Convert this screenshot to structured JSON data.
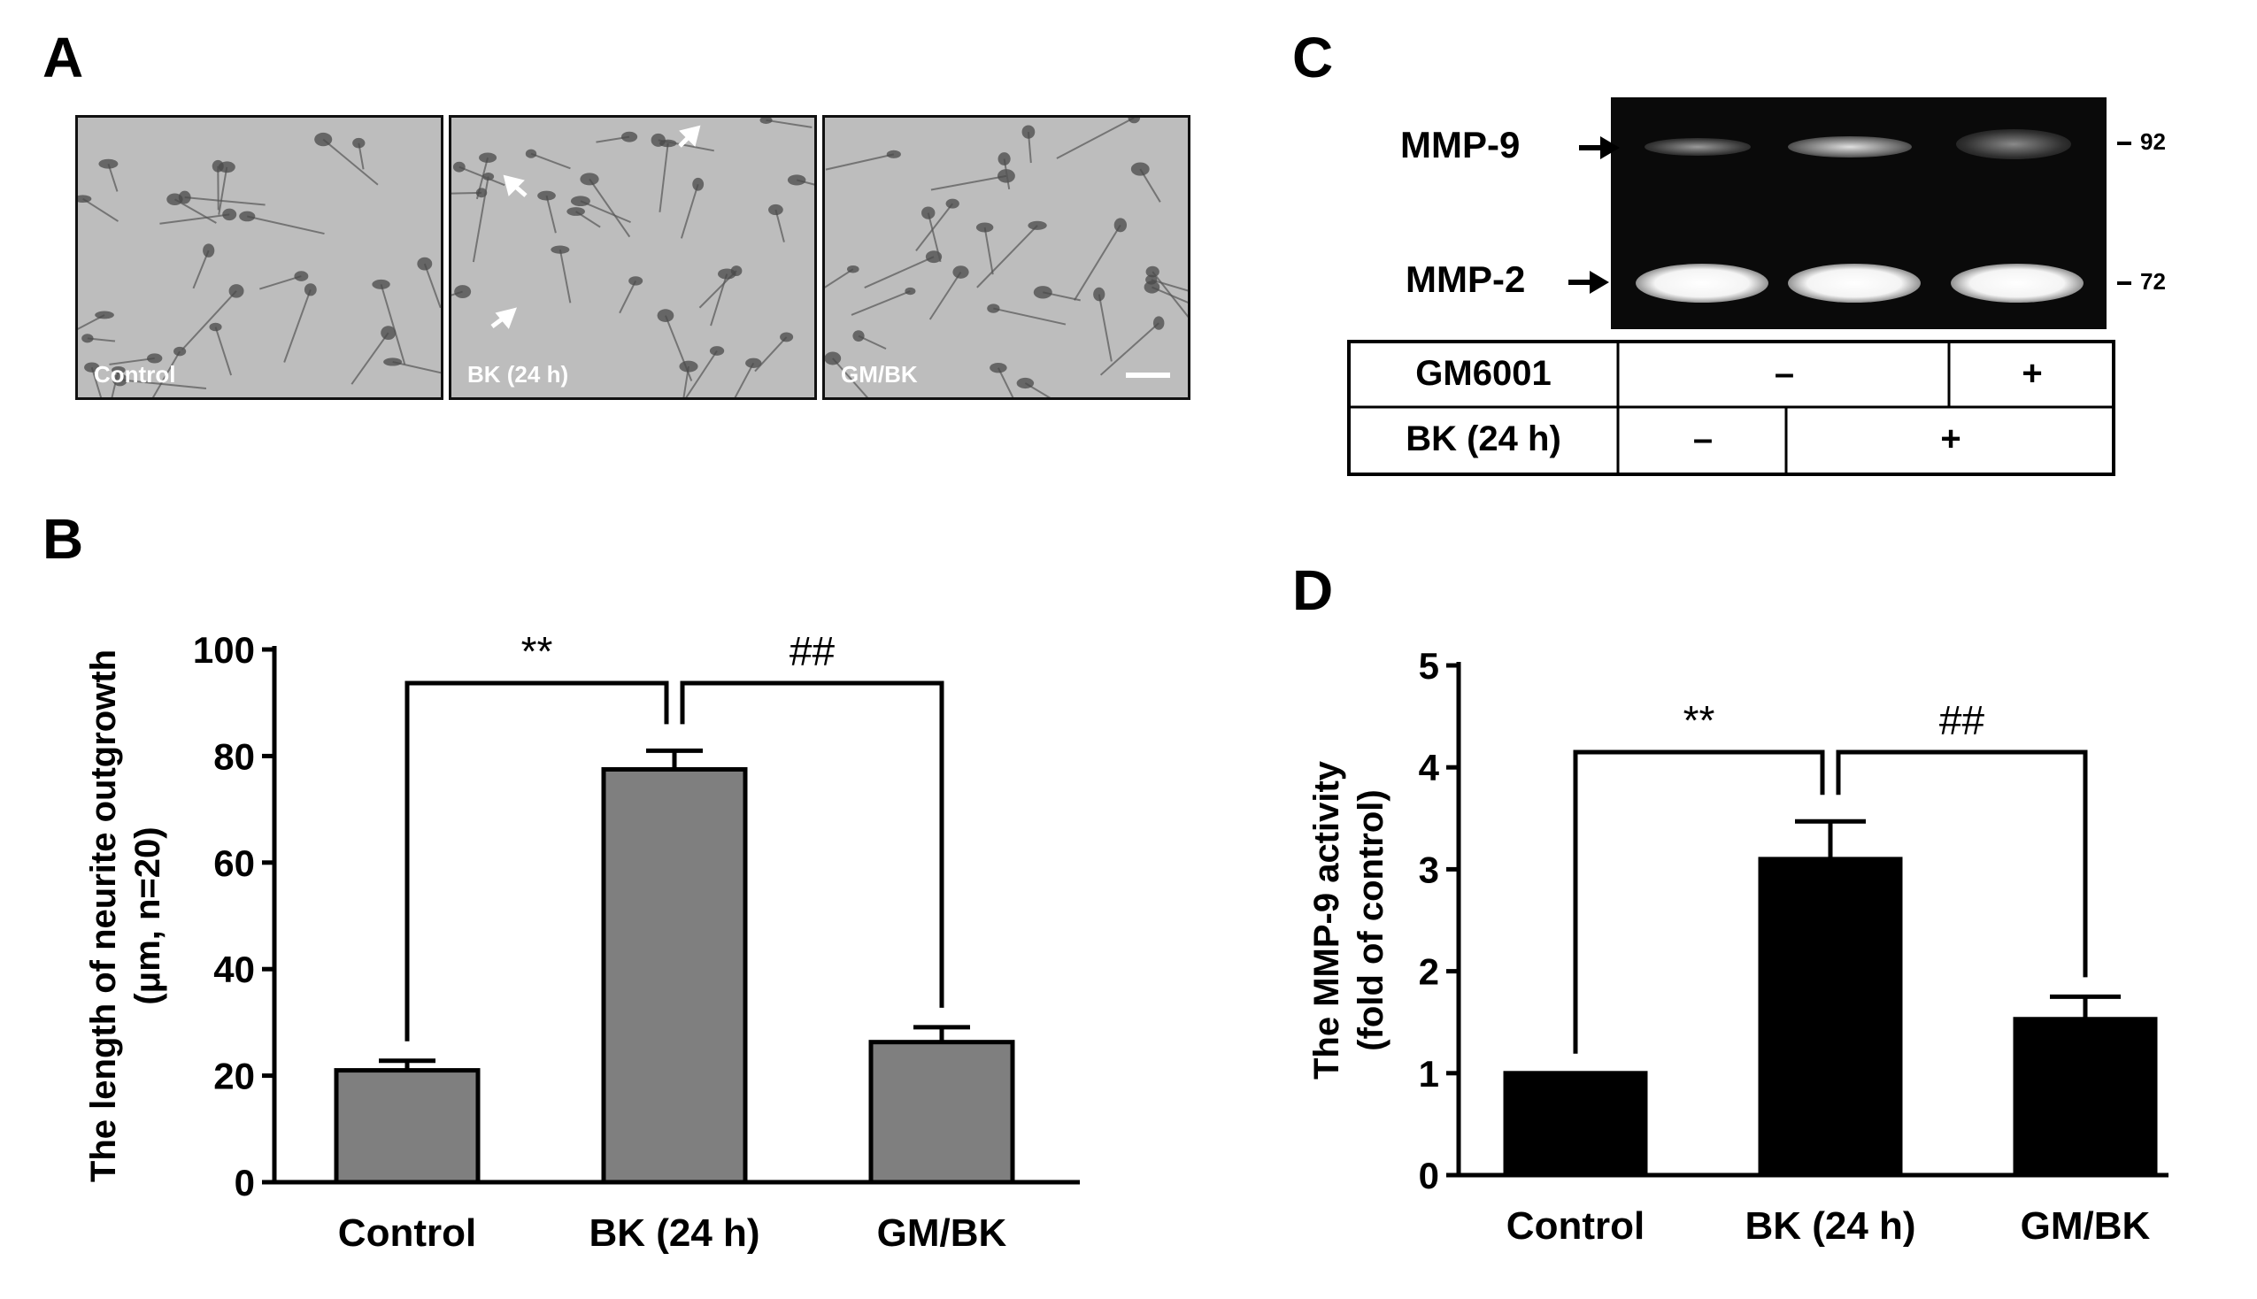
{
  "panels": {
    "a": {
      "letter": "A",
      "images": [
        {
          "label": "Control"
        },
        {
          "label": "BK (24 h)"
        },
        {
          "label": "GM/BK"
        }
      ]
    },
    "b": {
      "letter": "B"
    },
    "c": {
      "letter": "C",
      "bands": [
        {
          "name": "MMP-9",
          "marker": "92"
        },
        {
          "name": "MMP-2",
          "marker": "72"
        }
      ],
      "conditions": [
        {
          "name": "GM6001",
          "cells": [
            "–",
            "+"
          ]
        },
        {
          "name": "BK (24 h)",
          "cells": [
            "–",
            "+"
          ]
        }
      ]
    },
    "d": {
      "letter": "D"
    }
  },
  "chart_data": [
    {
      "type": "bar",
      "panel": "B",
      "categories": [
        "Control",
        "BK (24 h)",
        "GM/BK"
      ],
      "values": [
        21,
        77.5,
        26.3
      ],
      "errors": [
        1.8,
        3.5,
        2.8
      ],
      "ylabel_lines": [
        "The length of neurite outgrowth",
        "(μm, n=20)"
      ],
      "ylim": [
        0,
        100
      ],
      "yticks": [
        0,
        20,
        40,
        60,
        80,
        100
      ],
      "bar_color": "#7f7f7f",
      "annotations": [
        {
          "text": "**",
          "from": 0,
          "to": 1
        },
        {
          "text": "##",
          "from": 1,
          "to": 2
        }
      ]
    },
    {
      "type": "bar",
      "panel": "D",
      "categories": [
        "Control",
        "BK (24 h)",
        "GM/BK"
      ],
      "values": [
        1.0,
        3.1,
        1.53
      ],
      "errors": [
        0,
        0.37,
        0.22
      ],
      "ylabel_lines": [
        "The MMP-9 activity",
        "(fold of control)"
      ],
      "ylim": [
        0,
        5
      ],
      "yticks": [
        0,
        1,
        2,
        3,
        4,
        5
      ],
      "bar_color": "#000000",
      "annotations": [
        {
          "text": "**",
          "from": 0,
          "to": 1
        },
        {
          "text": "##",
          "from": 1,
          "to": 2
        }
      ]
    }
  ]
}
